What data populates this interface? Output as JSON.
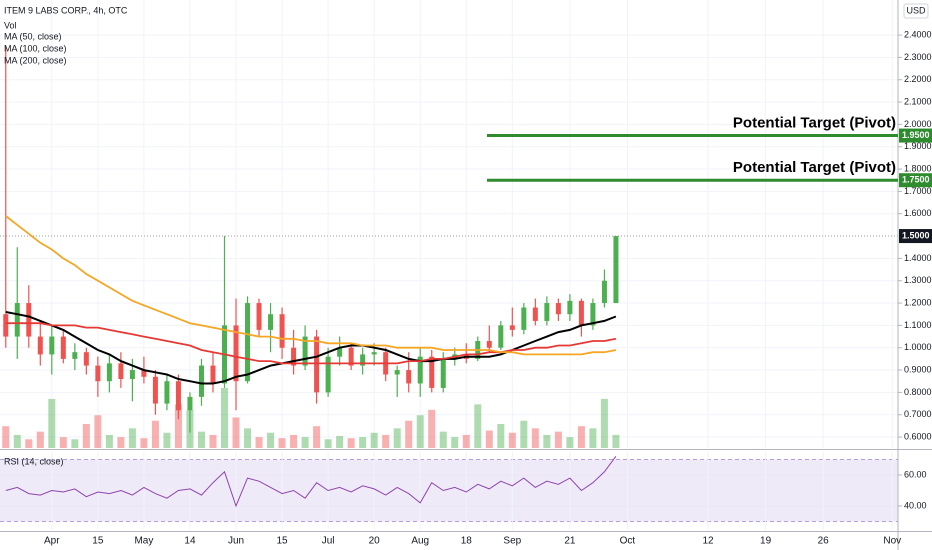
{
  "chart_data": {
    "type": "candlestick",
    "title": "ITEM 9 LABS CORP., 4h, OTC",
    "currency": "USD",
    "grid": true,
    "up_color": "#4caf50",
    "down_color": "#ef5350",
    "categories": [
      null,
      null,
      null,
      null,
      "Apr",
      null,
      null,
      null,
      "15",
      null,
      null,
      null,
      "May",
      null,
      null,
      null,
      "14",
      null,
      null,
      null,
      "Jun",
      null,
      null,
      null,
      "15",
      null,
      null,
      null,
      "Jul",
      null,
      null,
      null,
      "20",
      null,
      null,
      null,
      "Aug",
      null,
      null,
      null,
      "18",
      null,
      null,
      null,
      "Sep",
      null,
      null,
      null,
      null,
      "21",
      null,
      null,
      null,
      null,
      "Oct",
      null,
      null,
      null,
      null,
      null,
      null,
      "12",
      null,
      null,
      null,
      null,
      "19",
      null,
      null,
      null,
      null,
      "26",
      null,
      null,
      null,
      null,
      null,
      "Nov"
    ],
    "open": [
      1.15,
      1.05,
      1.2,
      1.05,
      0.97,
      1.05,
      0.95,
      0.98,
      0.92,
      0.85,
      0.93,
      0.86,
      0.9,
      0.87,
      0.75,
      0.85,
      0.72,
      0.78,
      0.92,
      0.84,
      1.1,
      0.85,
      1.2,
      1.08,
      1.15,
      1.0,
      0.92,
      1.05,
      0.8,
      0.96,
      1.0,
      0.92,
      0.97,
      0.98,
      0.88,
      0.9,
      0.84,
      0.96,
      0.82,
      0.95,
      0.97,
      0.95,
      1.03,
      1.0,
      1.1,
      1.08,
      1.18,
      1.12,
      1.2,
      1.15,
      1.21,
      1.1,
      1.2,
      1.2,
      null,
      null,
      null,
      null,
      null,
      null,
      null,
      null,
      null,
      null,
      null,
      null,
      null,
      null,
      null,
      null,
      null,
      null,
      null,
      null,
      null,
      null,
      null,
      null
    ],
    "high": [
      2.35,
      1.45,
      1.28,
      1.12,
      1.1,
      1.08,
      1.02,
      1.0,
      0.96,
      0.97,
      0.98,
      0.95,
      0.96,
      0.9,
      0.88,
      0.88,
      0.8,
      0.95,
      0.98,
      1.5,
      1.22,
      1.23,
      1.22,
      1.2,
      1.18,
      1.08,
      1.1,
      1.08,
      1.0,
      1.05,
      1.02,
      1.0,
      1.02,
      1.0,
      0.92,
      0.98,
      1.0,
      0.99,
      0.98,
      1.0,
      1.02,
      1.05,
      1.1,
      1.12,
      1.18,
      1.2,
      1.22,
      1.23,
      1.22,
      1.24,
      1.22,
      1.22,
      1.35,
      1.5,
      null,
      null,
      null,
      null,
      null,
      null,
      null,
      null,
      null,
      null,
      null,
      null,
      null,
      null,
      null,
      null,
      null,
      null,
      null,
      null,
      null,
      null,
      null,
      null
    ],
    "low": [
      1.0,
      0.95,
      1.0,
      0.92,
      0.88,
      0.93,
      0.9,
      0.88,
      0.78,
      0.8,
      0.82,
      0.76,
      0.84,
      0.7,
      0.72,
      0.68,
      0.62,
      0.74,
      0.8,
      0.82,
      0.72,
      0.84,
      1.05,
      0.98,
      0.95,
      0.88,
      0.9,
      0.75,
      0.78,
      0.92,
      0.9,
      0.88,
      0.92,
      0.85,
      0.78,
      0.8,
      0.78,
      0.8,
      0.8,
      0.92,
      0.93,
      0.94,
      0.98,
      0.99,
      1.05,
      1.06,
      1.1,
      1.1,
      1.12,
      1.12,
      1.05,
      1.08,
      1.18,
      1.2,
      null,
      null,
      null,
      null,
      null,
      null,
      null,
      null,
      null,
      null,
      null,
      null,
      null,
      null,
      null,
      null,
      null,
      null,
      null,
      null,
      null,
      null,
      null,
      null
    ],
    "close": [
      1.05,
      1.2,
      1.05,
      0.97,
      1.05,
      0.95,
      0.98,
      0.92,
      0.85,
      0.93,
      0.86,
      0.9,
      0.87,
      0.75,
      0.85,
      0.72,
      0.78,
      0.92,
      0.84,
      1.1,
      0.85,
      1.2,
      1.08,
      1.15,
      1.0,
      0.92,
      1.05,
      0.8,
      0.96,
      1.0,
      0.92,
      0.97,
      0.98,
      0.88,
      0.9,
      0.84,
      0.96,
      0.82,
      0.95,
      0.97,
      0.95,
      1.03,
      1.0,
      1.1,
      1.08,
      1.18,
      1.12,
      1.2,
      1.15,
      1.21,
      1.1,
      1.2,
      1.3,
      1.5,
      null,
      null,
      null,
      null,
      null,
      null,
      null,
      null,
      null,
      null,
      null,
      null,
      null,
      null,
      null,
      null,
      null,
      null,
      null,
      null,
      null,
      null,
      null,
      null
    ],
    "volume": {
      "name": "Vol",
      "values": [
        20,
        12,
        8,
        15,
        45,
        10,
        8,
        22,
        30,
        12,
        10,
        18,
        9,
        25,
        14,
        40,
        35,
        15,
        12,
        55,
        28,
        18,
        10,
        14,
        9,
        12,
        10,
        20,
        8,
        11,
        9,
        10,
        14,
        12,
        18,
        25,
        30,
        35,
        15,
        10,
        12,
        40,
        16,
        22,
        14,
        25,
        18,
        12,
        15,
        10,
        20,
        18,
        45,
        12,
        null,
        null,
        null,
        null,
        null,
        null,
        null,
        null,
        null,
        null,
        null,
        null,
        null,
        null,
        null,
        null,
        null,
        null,
        null,
        null,
        null,
        null,
        null,
        null
      ]
    },
    "series": [
      {
        "name": "MA (50, close)",
        "color": "#000000",
        "values": [
          1.16,
          1.15,
          1.14,
          1.12,
          1.1,
          1.08,
          1.05,
          1.02,
          0.99,
          0.97,
          0.94,
          0.92,
          0.9,
          0.89,
          0.88,
          0.86,
          0.85,
          0.84,
          0.84,
          0.85,
          0.87,
          0.88,
          0.9,
          0.92,
          0.93,
          0.94,
          0.95,
          0.96,
          0.98,
          1.0,
          1.01,
          1.01,
          1.0,
          0.99,
          0.97,
          0.95,
          0.94,
          0.94,
          0.95,
          0.95,
          0.96,
          0.96,
          0.96,
          0.97,
          0.99,
          1.01,
          1.03,
          1.05,
          1.07,
          1.08,
          1.1,
          1.11,
          1.12,
          1.14,
          null,
          null,
          null,
          null,
          null,
          null,
          null,
          null,
          null,
          null,
          null,
          null,
          null,
          null,
          null,
          null,
          null,
          null,
          null,
          null,
          null,
          null,
          null,
          null
        ]
      },
      {
        "name": "MA (100, close)",
        "color": "#e53935",
        "values": [
          1.11,
          1.11,
          1.11,
          1.11,
          1.1,
          1.1,
          1.1,
          1.09,
          1.09,
          1.08,
          1.07,
          1.06,
          1.05,
          1.04,
          1.03,
          1.02,
          1.01,
          0.99,
          0.98,
          0.97,
          0.96,
          0.95,
          0.94,
          0.94,
          0.93,
          0.93,
          0.93,
          0.93,
          0.93,
          0.93,
          0.93,
          0.93,
          0.93,
          0.93,
          0.93,
          0.94,
          0.94,
          0.95,
          0.95,
          0.96,
          0.97,
          0.97,
          0.98,
          0.98,
          0.99,
          0.99,
          1.0,
          1.0,
          1.01,
          1.01,
          1.02,
          1.03,
          1.03,
          1.04,
          null,
          null,
          null,
          null,
          null,
          null,
          null,
          null,
          null,
          null,
          null,
          null,
          null,
          null,
          null,
          null,
          null,
          null,
          null,
          null,
          null,
          null,
          null,
          null
        ]
      },
      {
        "name": "MA (200, close)",
        "color": "#f5a623",
        "values": [
          1.59,
          1.55,
          1.51,
          1.47,
          1.44,
          1.4,
          1.37,
          1.33,
          1.3,
          1.27,
          1.24,
          1.21,
          1.19,
          1.17,
          1.15,
          1.13,
          1.11,
          1.1,
          1.09,
          1.08,
          1.07,
          1.06,
          1.05,
          1.05,
          1.04,
          1.04,
          1.03,
          1.03,
          1.02,
          1.02,
          1.02,
          1.01,
          1.01,
          1.01,
          1.0,
          1.0,
          1.0,
          1.0,
          0.99,
          0.99,
          0.99,
          0.99,
          0.99,
          0.98,
          0.98,
          0.97,
          0.97,
          0.97,
          0.97,
          0.97,
          0.97,
          0.98,
          0.98,
          0.99,
          null,
          null,
          null,
          null,
          null,
          null,
          null,
          null,
          null,
          null,
          null,
          null,
          null,
          null,
          null,
          null,
          null,
          null,
          null,
          null,
          null,
          null,
          null,
          null
        ]
      }
    ],
    "ylim": [
      0.551,
      2.557
    ],
    "yticks": [
      {
        "value": 0.6,
        "label": "0.6000"
      },
      {
        "value": 0.7,
        "label": "0.7000"
      },
      {
        "value": 0.8,
        "label": "0.8000"
      },
      {
        "value": 0.9,
        "label": "0.9000"
      },
      {
        "value": 1.0,
        "label": "1.0000"
      },
      {
        "value": 1.1,
        "label": "1.1000"
      },
      {
        "value": 1.2,
        "label": "1.2000"
      },
      {
        "value": 1.3,
        "label": "1.3000"
      },
      {
        "value": 1.4,
        "label": "1.4000"
      },
      {
        "value": 1.6,
        "label": "1.6000"
      },
      {
        "value": 1.7,
        "label": "1.7000"
      },
      {
        "value": 1.8,
        "label": "1.8000"
      },
      {
        "value": 1.9,
        "label": "1.9000"
      },
      {
        "value": 2.0,
        "label": "2.0000"
      },
      {
        "value": 2.1,
        "label": "2.1000"
      },
      {
        "value": 2.2,
        "label": "2.2000"
      },
      {
        "value": 2.3,
        "label": "2.3000"
      },
      {
        "value": 2.4,
        "label": "2.4000"
      }
    ],
    "last_price": {
      "value": 1.5,
      "label": "1.5000"
    },
    "targets": [
      {
        "text": "Potential Target (Pivot)",
        "value": 1.95,
        "label": "1.9500",
        "color": "#2e8b2e"
      },
      {
        "text": "Potential Target (Pivot)",
        "value": 1.75,
        "label": "1.7500",
        "color": "#2e8b2e"
      }
    ],
    "rsi": {
      "name": "RSI (14, close)",
      "color": "#8e44ad",
      "values": [
        50,
        52,
        48,
        47,
        50,
        49,
        51,
        46,
        49,
        48,
        50,
        47,
        52,
        48,
        45,
        50,
        51,
        47,
        55,
        62,
        40,
        58,
        56,
        52,
        48,
        50,
        45,
        55,
        50,
        52,
        49,
        53,
        51,
        47,
        52,
        48,
        42,
        55,
        50,
        52,
        49,
        54,
        51,
        56,
        53,
        58,
        52,
        56,
        54,
        58,
        50,
        55,
        62,
        72,
        null,
        null,
        null,
        null,
        null,
        null,
        null,
        null,
        null,
        null,
        null,
        null,
        null,
        null,
        null,
        null,
        null,
        null,
        null,
        null,
        null,
        null,
        null,
        null
      ],
      "ylim": [
        24.5,
        74.8
      ],
      "yticks": [
        {
          "value": 40,
          "label": "40.00"
        },
        {
          "value": 60,
          "label": "60.00"
        }
      ],
      "band": [
        30,
        70
      ]
    }
  }
}
